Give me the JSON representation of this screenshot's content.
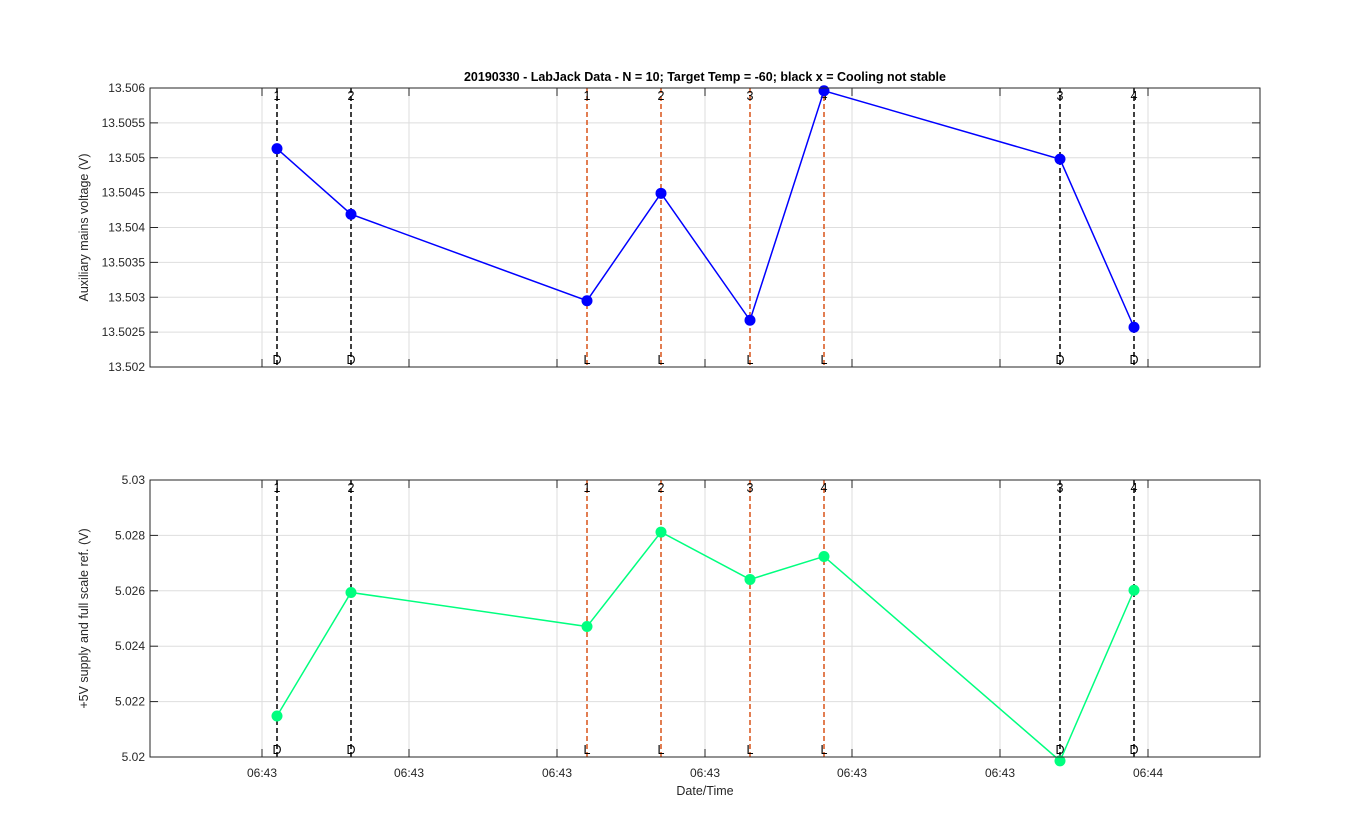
{
  "chart_data": [
    {
      "type": "line",
      "title": "20190330 - LabJack Data - N = 10; Target Temp = -60; black x = Cooling not stable",
      "xlabel": "",
      "ylabel": "Auxiliary mains voltage (V)",
      "ylim": [
        13.502,
        13.506
      ],
      "ytick_labels": [
        "13.502",
        "13.5025",
        "13.503",
        "13.5035",
        "13.504",
        "13.5045",
        "13.505",
        "13.5055",
        "13.506"
      ],
      "ytick_values": [
        13.502,
        13.5025,
        13.503,
        13.5035,
        13.504,
        13.5045,
        13.505,
        13.5055,
        13.506
      ],
      "grid": true,
      "color": "#0000ff",
      "x": [
        1,
        2,
        3,
        4,
        5,
        6,
        7,
        8
      ],
      "values": [
        13.50513,
        13.50419,
        13.50295,
        13.50449,
        13.50267,
        13.50596,
        13.50498,
        13.50257
      ],
      "markers": [
        {
          "top": "1",
          "bottom": "D",
          "color": "#000000"
        },
        {
          "top": "2",
          "bottom": "D",
          "color": "#000000"
        },
        {
          "top": "1",
          "bottom": "L",
          "color": "#d95319"
        },
        {
          "top": "2",
          "bottom": "L",
          "color": "#d95319"
        },
        {
          "top": "3",
          "bottom": "L",
          "color": "#d95319"
        },
        {
          "top": "4",
          "bottom": "L",
          "color": "#d95319"
        },
        {
          "top": "3",
          "bottom": "D",
          "color": "#000000"
        },
        {
          "top": "4",
          "bottom": "D",
          "color": "#000000"
        }
      ]
    },
    {
      "type": "line",
      "title": "",
      "xlabel": "Date/Time",
      "ylabel": "+5V supply and full scale ref. (V)",
      "ylim": [
        5.02,
        5.03
      ],
      "ytick_labels": [
        "5.02",
        "5.022",
        "5.024",
        "5.026",
        "5.028",
        "5.03"
      ],
      "ytick_values": [
        5.02,
        5.022,
        5.024,
        5.026,
        5.028,
        5.03
      ],
      "xtick_labels": [
        "06:43",
        "06:43",
        "06:43",
        "06:43",
        "06:43",
        "06:43",
        "06:44"
      ],
      "grid": true,
      "color": "#00ff7f",
      "x": [
        1,
        2,
        3,
        4,
        5,
        6,
        7,
        8
      ],
      "values": [
        5.02148,
        5.02594,
        5.02471,
        5.02812,
        5.02641,
        5.02724,
        5.01986,
        5.02602
      ],
      "markers": [
        {
          "top": "1",
          "bottom": "D",
          "color": "#000000"
        },
        {
          "top": "2",
          "bottom": "D",
          "color": "#000000"
        },
        {
          "top": "1",
          "bottom": "L",
          "color": "#d95319"
        },
        {
          "top": "2",
          "bottom": "L",
          "color": "#d95319"
        },
        {
          "top": "3",
          "bottom": "L",
          "color": "#d95319"
        },
        {
          "top": "4",
          "bottom": "L",
          "color": "#d95319"
        },
        {
          "top": "3",
          "bottom": "D",
          "color": "#000000"
        },
        {
          "top": "4",
          "bottom": "D",
          "color": "#000000"
        }
      ]
    }
  ]
}
